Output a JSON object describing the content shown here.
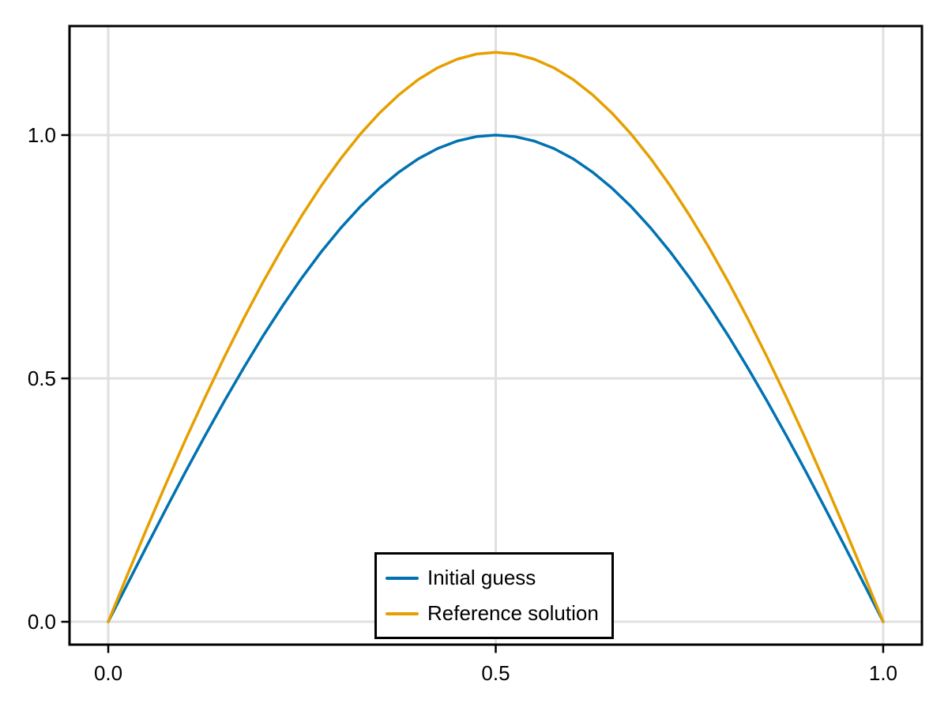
{
  "chart_data": {
    "type": "line",
    "title": "",
    "xlabel": "",
    "ylabel": "",
    "grid": true,
    "legend_position": "bottom-center-inside",
    "xlim": [
      -0.05,
      1.05
    ],
    "ylim": [
      -0.047,
      1.224
    ],
    "xticks": {
      "values": [
        0.0,
        0.5,
        1.0
      ],
      "labels": [
        "0.0",
        "0.5",
        "1.0"
      ]
    },
    "yticks": {
      "values": [
        0.0,
        0.5,
        1.0
      ],
      "labels": [
        "0.0",
        "0.5",
        "1.0"
      ]
    },
    "x": [
      0,
      0.025,
      0.05,
      0.075,
      0.1,
      0.125,
      0.15,
      0.175,
      0.2,
      0.225,
      0.25,
      0.275,
      0.3,
      0.325,
      0.35,
      0.375,
      0.4,
      0.425,
      0.45,
      0.475,
      0.5,
      0.525,
      0.55,
      0.575,
      0.6,
      0.625,
      0.65,
      0.675,
      0.7,
      0.725,
      0.75,
      0.775,
      0.8,
      0.825,
      0.85,
      0.875,
      0.9,
      0.925,
      0.95,
      0.975,
      1
    ],
    "series": [
      {
        "name": "Initial guess",
        "color": "#0072B2",
        "values": [
          0,
          0.0785,
          0.1564,
          0.2334,
          0.309,
          0.3827,
          0.454,
          0.5225,
          0.5878,
          0.6494,
          0.7071,
          0.7604,
          0.809,
          0.8526,
          0.891,
          0.9239,
          0.9511,
          0.9724,
          0.9877,
          0.9969,
          1,
          0.9969,
          0.9877,
          0.9724,
          0.9511,
          0.9239,
          0.891,
          0.8526,
          0.809,
          0.7604,
          0.7071,
          0.6494,
          0.5878,
          0.5225,
          0.454,
          0.3827,
          0.309,
          0.2334,
          0.1564,
          0.0785,
          0
        ]
      },
      {
        "name": "Reference solution",
        "color": "#E69F00",
        "values": [
          0,
          0.0978,
          0.1929,
          0.2854,
          0.3752,
          0.4615,
          0.5445,
          0.6237,
          0.6987,
          0.7694,
          0.8353,
          0.8962,
          0.9517,
          1.0014,
          1.0453,
          1.0828,
          1.1139,
          1.1383,
          1.1559,
          1.1665,
          1.17,
          1.1665,
          1.1559,
          1.1383,
          1.1139,
          1.0828,
          1.0453,
          1.0014,
          0.9517,
          0.8962,
          0.8353,
          0.7694,
          0.6987,
          0.6237,
          0.5445,
          0.4615,
          0.3752,
          0.2854,
          0.1929,
          0.0978,
          0
        ]
      }
    ],
    "colors": {
      "background": "#ffffff",
      "grid": "#e0e0e0",
      "spine": "#000000",
      "tick": "#000000",
      "tick_label": "#000000",
      "legend_border": "#000000",
      "legend_background": "#ffffff"
    }
  }
}
